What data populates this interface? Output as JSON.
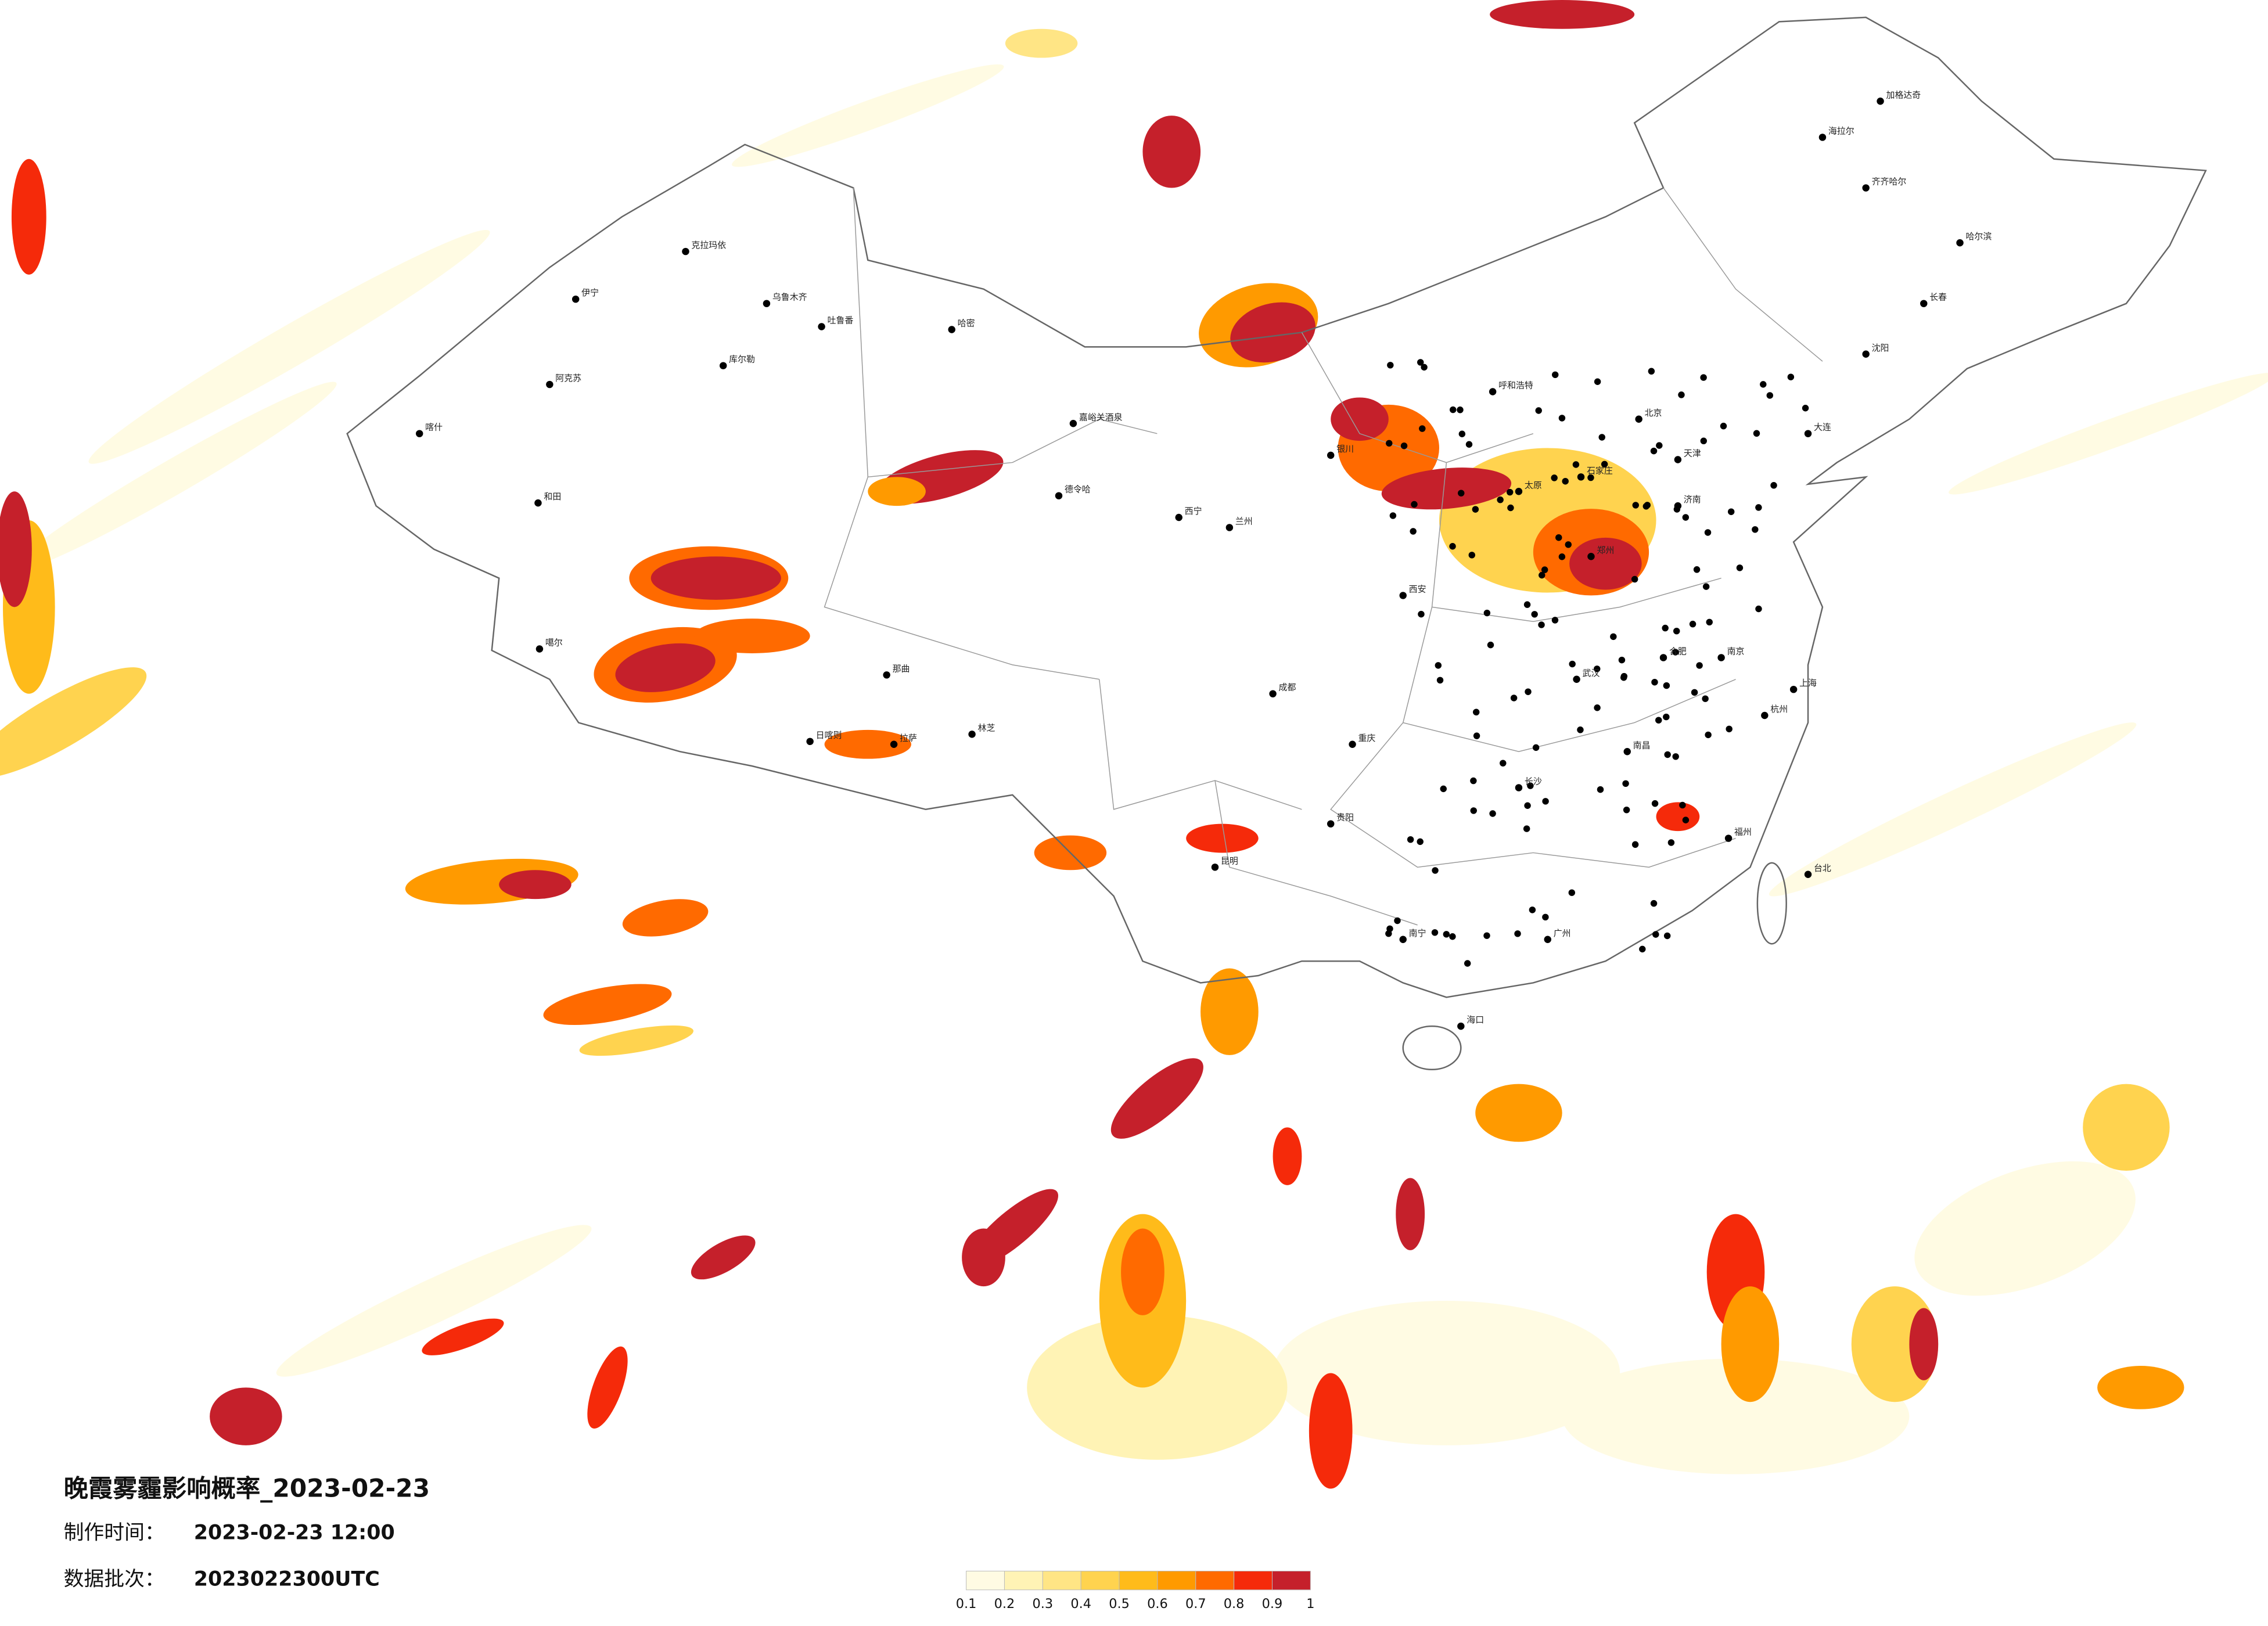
{
  "header": {
    "title": "晚霞雾霾影响概率_2023-02-23"
  },
  "info": [
    {
      "label": "制作时间：",
      "value": "2023-02-23 12:00"
    },
    {
      "label": "数据批次：",
      "value": "2023022300UTC"
    }
  ],
  "legend": {
    "ticks": [
      0.1,
      0.2,
      0.3,
      0.4,
      0.5,
      0.6,
      0.7,
      0.8,
      0.9,
      1
    ],
    "colors": [
      "#fffbe3",
      "#fff3b5",
      "#ffe585",
      "#ffd34f",
      "#ffbb1a",
      "#ff9a00",
      "#ff6a00",
      "#f52a0a",
      "#c5202b"
    ]
  },
  "cities": [
    "克拉玛依",
    "伊宁",
    "乌鲁木齐",
    "吐鲁番",
    "库尔勒",
    "阿克苏",
    "喀什",
    "和田",
    "哈密",
    "嘉峪关酒泉",
    "德令哈",
    "拉萨",
    "日喀则",
    "林芝",
    "噶尔",
    "那曲",
    "呼和浩特",
    "北京",
    "天津",
    "石家庄",
    "太原",
    "西安",
    "郑州",
    "济南",
    "上海",
    "南京",
    "武汉",
    "长沙",
    "成都",
    "重庆",
    "贵阳",
    "昆明",
    "南宁",
    "广州",
    "福州",
    "台北",
    "海口",
    "哈尔滨",
    "长春",
    "沈阳",
    "大连",
    "兰州",
    "西宁",
    "银川",
    "南昌",
    "杭州",
    "合肥",
    "齐齐哈尔",
    "加格达奇",
    "海拉尔"
  ]
}
